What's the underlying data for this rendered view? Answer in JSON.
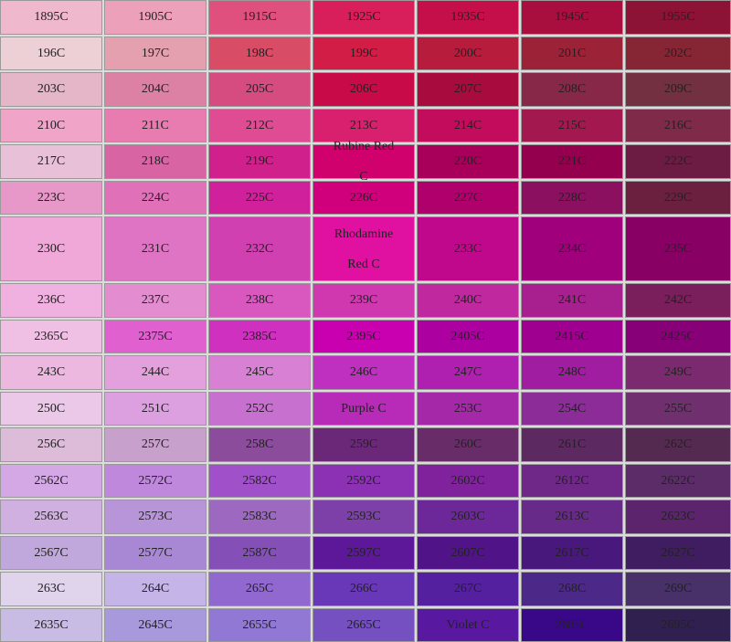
{
  "rows": [
    [
      {
        "label": "1895C",
        "color": "#f0b8cc"
      },
      {
        "label": "1905C",
        "color": "#eca0ba"
      },
      {
        "label": "1915C",
        "color": "#e0507f"
      },
      {
        "label": "1925C",
        "color": "#d81e5b"
      },
      {
        "label": "1935C",
        "color": "#c40f4a"
      },
      {
        "label": "1945C",
        "color": "#a80f3e"
      },
      {
        "label": "1955C",
        "color": "#8c1236"
      }
    ],
    [
      {
        "label": "196C",
        "color": "#ecd0d5"
      },
      {
        "label": "197C",
        "color": "#e4a0ae"
      },
      {
        "label": "198C",
        "color": "#d84c66"
      },
      {
        "label": "199C",
        "color": "#d21e46"
      },
      {
        "label": "200C",
        "color": "#b81c3c"
      },
      {
        "label": "201C",
        "color": "#9c2238"
      },
      {
        "label": "202C",
        "color": "#862634"
      }
    ],
    [
      {
        "label": "203C",
        "color": "#e4b6c8"
      },
      {
        "label": "204C",
        "color": "#dc80a4"
      },
      {
        "label": "205C",
        "color": "#d64c80"
      },
      {
        "label": "206C",
        "color": "#c80a48"
      },
      {
        "label": "207C",
        "color": "#a80c3e"
      },
      {
        "label": "208C",
        "color": "#882848"
      },
      {
        "label": "209C",
        "color": "#723040"
      }
    ],
    [
      {
        "label": "210C",
        "color": "#f0a4c8"
      },
      {
        "label": "211C",
        "color": "#e87cb0"
      },
      {
        "label": "212C",
        "color": "#e04c94"
      },
      {
        "label": "213C",
        "color": "#d8206e"
      },
      {
        "label": "214C",
        "color": "#c40c5c"
      },
      {
        "label": "215C",
        "color": "#a41850"
      },
      {
        "label": "216C",
        "color": "#7e2a48"
      }
    ],
    [
      {
        "label": "217C",
        "color": "#e8c0d8"
      },
      {
        "label": "218C",
        "color": "#d864a4"
      },
      {
        "label": "219C",
        "color": "#d0208c"
      },
      {
        "label": "Rubine Red C",
        "color": "#d0006c"
      },
      {
        "label": "220C",
        "color": "#a8005a"
      },
      {
        "label": "221C",
        "color": "#94004e"
      },
      {
        "label": "222C",
        "color": "#6c1c42"
      }
    ],
    [
      {
        "label": "223C",
        "color": "#e898c8"
      },
      {
        "label": "224C",
        "color": "#e070b8"
      },
      {
        "label": "225C",
        "color": "#d0209c"
      },
      {
        "label": "226C",
        "color": "#d0007c"
      },
      {
        "label": "227C",
        "color": "#b0006c"
      },
      {
        "label": "228C",
        "color": "#8c1060"
      },
      {
        "label": "229C",
        "color": "#6c2040"
      }
    ],
    [
      {
        "label": "230C",
        "color": "#f0a8d8"
      },
      {
        "label": "231C",
        "color": "#e074c4"
      },
      {
        "label": "232C",
        "color": "#d040b0"
      },
      {
        "label": "Rhodamine Red C",
        "color": "#e010a0"
      },
      {
        "label": "233C",
        "color": "#c0088c"
      },
      {
        "label": "234C",
        "color": "#a0007c"
      },
      {
        "label": "235C",
        "color": "#880064"
      }
    ],
    [
      {
        "label": "236C",
        "color": "#f0b0e0"
      },
      {
        "label": "237C",
        "color": "#e48cd0"
      },
      {
        "label": "238C",
        "color": "#d858c0"
      },
      {
        "label": "239C",
        "color": "#d038b0"
      },
      {
        "label": "240C",
        "color": "#c028a0"
      },
      {
        "label": "241C",
        "color": "#a82090"
      },
      {
        "label": "242C",
        "color": "#7a1e5c"
      }
    ],
    [
      {
        "label": "2365C",
        "color": "#f0c0e4"
      },
      {
        "label": "2375C",
        "color": "#e060d0"
      },
      {
        "label": "2385C",
        "color": "#d030c0"
      },
      {
        "label": "2395C",
        "color": "#c800b0"
      },
      {
        "label": "2405C",
        "color": "#ac00a0"
      },
      {
        "label": "2415C",
        "color": "#a00090"
      },
      {
        "label": "2425C",
        "color": "#880078"
      }
    ],
    [
      {
        "label": "243C",
        "color": "#ecb8e0"
      },
      {
        "label": "244C",
        "color": "#e4a0dc"
      },
      {
        "label": "245C",
        "color": "#d880d4"
      },
      {
        "label": "246C",
        "color": "#c030c0"
      },
      {
        "label": "247C",
        "color": "#b020b0"
      },
      {
        "label": "248C",
        "color": "#a01ca0"
      },
      {
        "label": "249C",
        "color": "#7c2a70"
      }
    ],
    [
      {
        "label": "250C",
        "color": "#ecc8e8"
      },
      {
        "label": "251C",
        "color": "#dca0e0"
      },
      {
        "label": "252C",
        "color": "#c870d0"
      },
      {
        "label": "Purple C",
        "color": "#b82ab8"
      },
      {
        "label": "253C",
        "color": "#a428a8"
      },
      {
        "label": "254C",
        "color": "#8c2c98"
      },
      {
        "label": "255C",
        "color": "#703070"
      }
    ],
    [
      {
        "label": "256C",
        "color": "#dcbcd8"
      },
      {
        "label": "257C",
        "color": "#c8a0cc"
      },
      {
        "label": "258C",
        "color": "#8c4c9c"
      },
      {
        "label": "259C",
        "color": "#6c2878"
      },
      {
        "label": "260C",
        "color": "#682c68"
      },
      {
        "label": "261C",
        "color": "#5c2a60"
      },
      {
        "label": "262C",
        "color": "#542a50"
      }
    ],
    [
      {
        "label": "2562C",
        "color": "#d4a8e4"
      },
      {
        "label": "2572C",
        "color": "#c088dc"
      },
      {
        "label": "2582C",
        "color": "#a050c8"
      },
      {
        "label": "2592C",
        "color": "#8c30b4"
      },
      {
        "label": "2602C",
        "color": "#80229c"
      },
      {
        "label": "2612C",
        "color": "#702888"
      },
      {
        "label": "2622C",
        "color": "#5c2c68"
      }
    ],
    [
      {
        "label": "2563C",
        "color": "#d0b0e0"
      },
      {
        "label": "2573C",
        "color": "#b894d8"
      },
      {
        "label": "2583C",
        "color": "#9c68c0"
      },
      {
        "label": "2593C",
        "color": "#7c40a8"
      },
      {
        "label": "2603C",
        "color": "#6c2898"
      },
      {
        "label": "2613C",
        "color": "#682a88"
      },
      {
        "label": "2623C",
        "color": "#5c246c"
      }
    ],
    [
      {
        "label": "2567C",
        "color": "#c0a8dc"
      },
      {
        "label": "2577C",
        "color": "#a888d4"
      },
      {
        "label": "2587C",
        "color": "#8450b8"
      },
      {
        "label": "2597C",
        "color": "#5c1898"
      },
      {
        "label": "2607C",
        "color": "#501488"
      },
      {
        "label": "2617C",
        "color": "#48187c"
      },
      {
        "label": "2627C",
        "color": "#401c60"
      }
    ],
    [
      {
        "label": "263C",
        "color": "#e0d4ec"
      },
      {
        "label": "264C",
        "color": "#c4b4e8"
      },
      {
        "label": "265C",
        "color": "#9068d0"
      },
      {
        "label": "266C",
        "color": "#6838b8"
      },
      {
        "label": "267C",
        "color": "#5420a0"
      },
      {
        "label": "268C",
        "color": "#4c2888"
      },
      {
        "label": "269C",
        "color": "#483068"
      }
    ],
    [
      {
        "label": "2635C",
        "color": "#c8bce4"
      },
      {
        "label": "2645C",
        "color": "#a898dc"
      },
      {
        "label": "2655C",
        "color": "#9078d4"
      },
      {
        "label": "2665C",
        "color": "#7450c0"
      },
      {
        "label": "Violet C",
        "color": "#5818a0"
      },
      {
        "label": "2685C",
        "color": "#380888"
      },
      {
        "label": "2695C",
        "color": "#302050"
      }
    ]
  ]
}
